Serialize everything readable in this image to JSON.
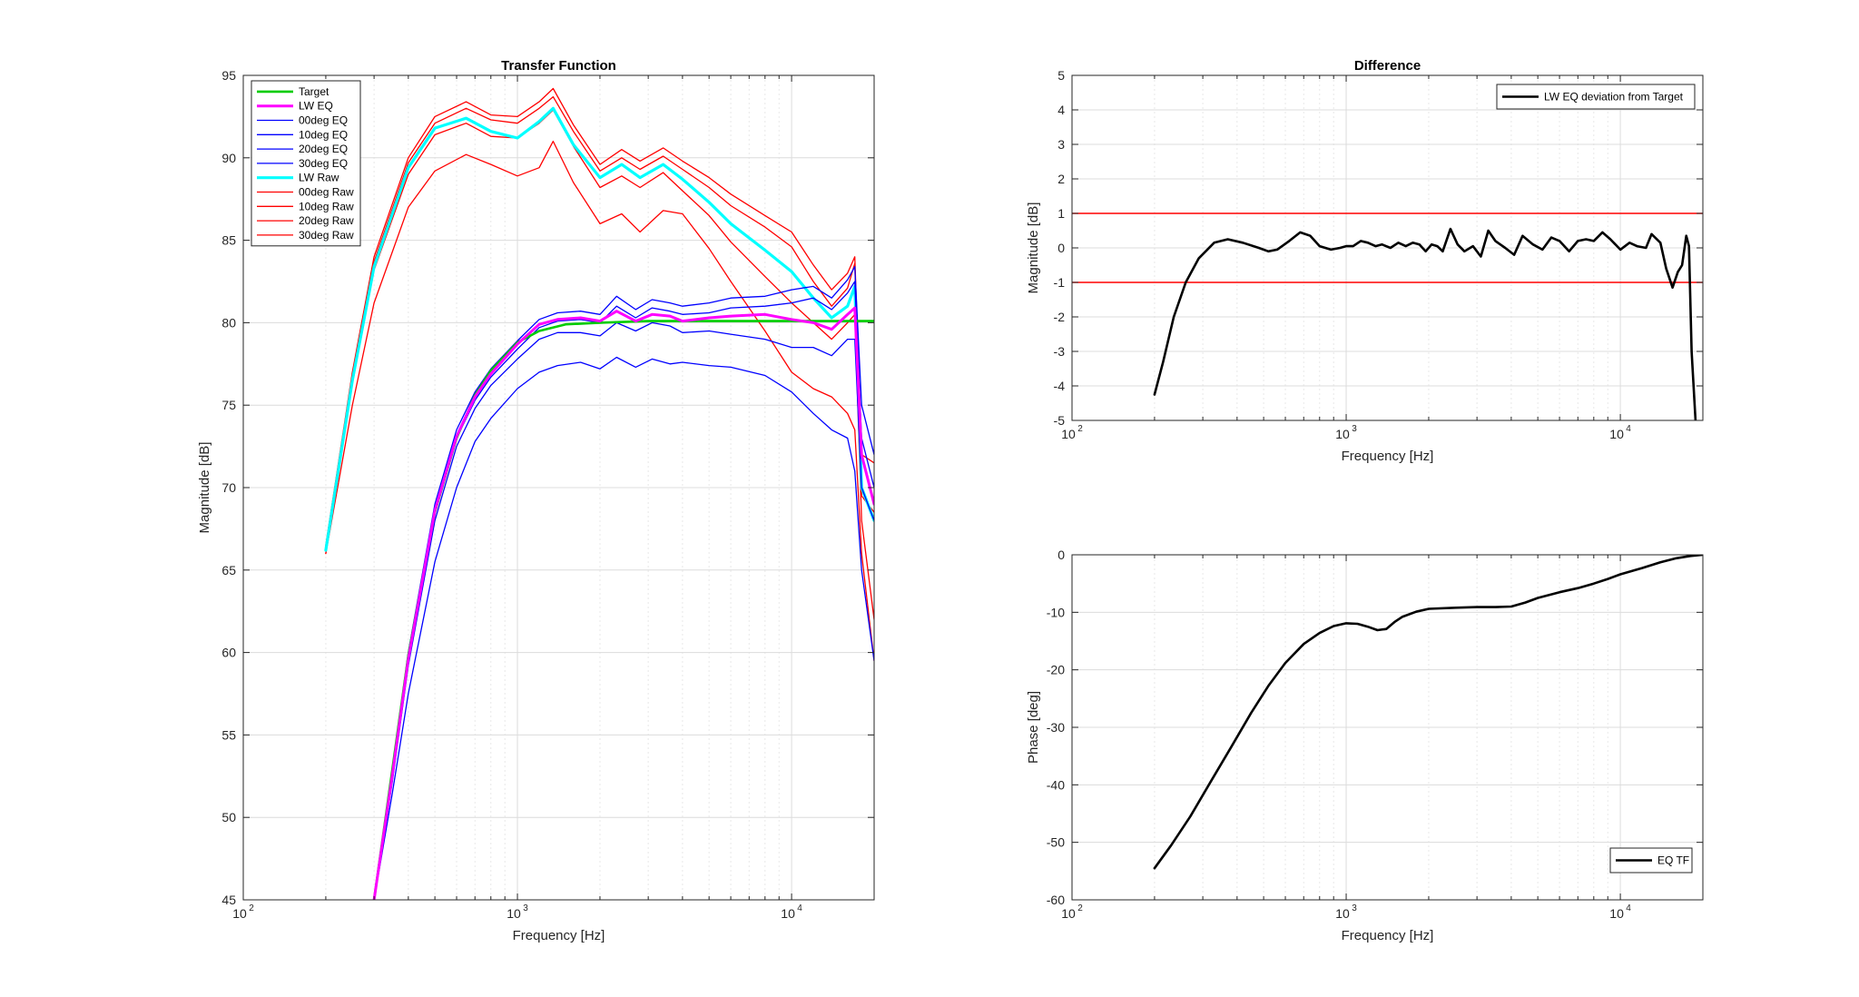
{
  "figure": {
    "background": "#ffffff"
  },
  "chart_data": [
    {
      "id": "tf",
      "type": "line",
      "title": "Transfer Function",
      "xlabel": "Frequency [Hz]",
      "ylabel": "Magnitude [dB]",
      "xscale": "log",
      "xlim": [
        100,
        20000
      ],
      "ylim": [
        45,
        95
      ],
      "grid": true,
      "xticks": [
        100,
        1000,
        10000
      ],
      "xtick_labels": [
        "10",
        "10",
        "10"
      ],
      "xtick_exponents": [
        "2",
        "3",
        "4"
      ],
      "yticks": [
        45,
        50,
        55,
        60,
        65,
        70,
        75,
        80,
        85,
        90,
        95
      ],
      "ytick_labels": [
        "45",
        "50",
        "55",
        "60",
        "65",
        "70",
        "75",
        "80",
        "85",
        "90",
        "95"
      ],
      "legend": {
        "placement": "top-left",
        "entries": [
          "Target",
          "LW EQ",
          "00deg EQ",
          "10deg EQ",
          "20deg EQ",
          "30deg EQ",
          "LW Raw",
          "00deg Raw",
          "10deg Raw",
          "20deg Raw",
          "30deg Raw"
        ]
      },
      "series": [
        {
          "name": "00deg Raw",
          "color": "#ff0000",
          "width": 1.3,
          "x": [
            200,
            250,
            300,
            400,
            500,
            650,
            800,
            1000,
            1200,
            1350,
            1600,
            2000,
            2400,
            2800,
            3400,
            4000,
            5000,
            6000,
            8000,
            10000,
            12000,
            14000,
            16000,
            17000,
            18000,
            20000
          ],
          "y": [
            66.5,
            77,
            84,
            90,
            92.5,
            93.4,
            92.6,
            92.5,
            93.4,
            94.2,
            92,
            89.6,
            90.5,
            89.8,
            90.6,
            89.8,
            88.8,
            87.8,
            86.5,
            85.5,
            83.5,
            82,
            83,
            84,
            72,
            71.5
          ]
        },
        {
          "name": "10deg Raw",
          "color": "#ff0000",
          "width": 1.3,
          "x": [
            200,
            250,
            300,
            400,
            500,
            650,
            800,
            1000,
            1200,
            1350,
            1600,
            2000,
            2400,
            2800,
            3400,
            4000,
            5000,
            6000,
            8000,
            10000,
            12000,
            14000,
            16000,
            17000,
            18000,
            20000
          ],
          "y": [
            66.2,
            76.7,
            83.7,
            89.7,
            92.1,
            93.0,
            92.3,
            92.1,
            93.0,
            93.7,
            91.6,
            89.2,
            90.0,
            89.3,
            90.1,
            89.3,
            88.2,
            87.1,
            85.8,
            84.6,
            82.5,
            81.0,
            82.1,
            83.6,
            69.5,
            68.5
          ]
        },
        {
          "name": "20deg Raw",
          "color": "#ff0000",
          "width": 1.3,
          "x": [
            200,
            250,
            300,
            400,
            500,
            650,
            800,
            1000,
            1200,
            1350,
            1600,
            2000,
            2400,
            2800,
            3400,
            4000,
            5000,
            6000,
            8000,
            10000,
            12000,
            14000,
            16000,
            17000,
            18000,
            20000
          ],
          "y": [
            66.0,
            76.3,
            83.2,
            89.0,
            91.4,
            92.1,
            91.3,
            91.2,
            92.1,
            92.9,
            90.7,
            88.2,
            88.9,
            88.2,
            89.1,
            88.0,
            86.5,
            84.9,
            82.8,
            81.2,
            80.0,
            79.0,
            80.0,
            80.5,
            68.0,
            62.0
          ]
        },
        {
          "name": "30deg Raw",
          "color": "#ff0000",
          "width": 1.3,
          "x": [
            200,
            250,
            300,
            400,
            500,
            650,
            800,
            1000,
            1200,
            1350,
            1600,
            2000,
            2400,
            2800,
            3400,
            4000,
            5000,
            6000,
            8000,
            10000,
            12000,
            14000,
            16000,
            17000,
            18000,
            20000
          ],
          "y": [
            66.0,
            75.0,
            81.2,
            87.0,
            89.2,
            90.2,
            89.6,
            88.9,
            89.4,
            91.0,
            88.5,
            86.0,
            86.6,
            85.5,
            86.8,
            86.6,
            84.5,
            82.5,
            79.5,
            77.0,
            76.0,
            75.5,
            74.5,
            73.5,
            66.0,
            59.5
          ]
        },
        {
          "name": "LW Raw",
          "color": "#00ffff",
          "width": 3.2,
          "x": [
            200,
            250,
            300,
            400,
            500,
            650,
            800,
            1000,
            1200,
            1350,
            1600,
            2000,
            2400,
            2800,
            3400,
            4000,
            5000,
            6000,
            8000,
            10000,
            12000,
            14000,
            16000,
            17000,
            18000,
            20000
          ],
          "y": [
            66.2,
            76.5,
            83.4,
            89.4,
            91.8,
            92.4,
            91.6,
            91.2,
            92.2,
            93.0,
            90.8,
            88.8,
            89.6,
            88.8,
            89.6,
            88.7,
            87.3,
            86.0,
            84.4,
            83.1,
            81.5,
            80.3,
            81.0,
            82.2,
            70.0,
            68.0
          ]
        },
        {
          "name": "00deg EQ",
          "color": "#0000ff",
          "width": 1.3,
          "x": [
            300,
            350,
            400,
            500,
            600,
            700,
            800,
            1000,
            1200,
            1400,
            1700,
            2000,
            2300,
            2700,
            3100,
            3600,
            4000,
            5000,
            6000,
            8000,
            10000,
            12000,
            14000,
            16000,
            17000,
            18000,
            20000
          ],
          "y": [
            45,
            53,
            60,
            69,
            73.5,
            75.8,
            77.2,
            78.9,
            80.2,
            80.6,
            80.7,
            80.5,
            81.6,
            80.8,
            81.4,
            81.2,
            81.0,
            81.2,
            81.5,
            81.6,
            82.0,
            82.2,
            81.5,
            82.6,
            83.4,
            75.0,
            72.0
          ]
        },
        {
          "name": "10deg EQ",
          "color": "#0000ff",
          "width": 1.3,
          "x": [
            300,
            350,
            400,
            500,
            600,
            700,
            800,
            1000,
            1200,
            1400,
            1700,
            2000,
            2300,
            2700,
            3100,
            3600,
            4000,
            5000,
            6000,
            8000,
            10000,
            12000,
            14000,
            16000,
            17000,
            18000,
            20000
          ],
          "y": [
            45,
            52.5,
            59.5,
            68.5,
            73,
            75.3,
            76.7,
            78.4,
            79.7,
            80.1,
            80.2,
            80.0,
            81.0,
            80.3,
            80.9,
            80.7,
            80.5,
            80.6,
            80.9,
            81.0,
            81.2,
            81.5,
            80.8,
            81.8,
            82.5,
            73.0,
            70.0
          ]
        },
        {
          "name": "20deg EQ",
          "color": "#0000ff",
          "width": 1.3,
          "x": [
            300,
            350,
            400,
            500,
            600,
            700,
            800,
            1000,
            1200,
            1400,
            1700,
            2000,
            2300,
            2700,
            3100,
            3600,
            4000,
            5000,
            6000,
            8000,
            10000,
            12000,
            14000,
            16000,
            17000,
            18000,
            20000
          ],
          "y": [
            45,
            52.2,
            59.2,
            68.0,
            72.5,
            74.8,
            76.2,
            77.8,
            79.0,
            79.4,
            79.4,
            79.2,
            80.0,
            79.5,
            80.0,
            79.8,
            79.4,
            79.5,
            79.3,
            79.0,
            78.5,
            78.5,
            78.0,
            79.0,
            79.0,
            70.0,
            68.0
          ]
        },
        {
          "name": "30deg EQ",
          "color": "#0000ff",
          "width": 1.3,
          "x": [
            300,
            350,
            400,
            500,
            600,
            700,
            800,
            1000,
            1200,
            1400,
            1700,
            2000,
            2300,
            2700,
            3100,
            3600,
            4000,
            5000,
            6000,
            8000,
            10000,
            12000,
            14000,
            16000,
            17000,
            18000,
            20000
          ],
          "y": [
            45,
            51.5,
            57.5,
            65.5,
            70,
            72.8,
            74.2,
            76.0,
            77.0,
            77.4,
            77.6,
            77.2,
            77.9,
            77.3,
            77.8,
            77.5,
            77.6,
            77.4,
            77.3,
            76.8,
            75.8,
            74.5,
            73.5,
            73.0,
            71.0,
            65.0,
            59.5
          ]
        },
        {
          "name": "Target",
          "color": "#00cc00",
          "width": 2.6,
          "x": [
            300,
            400,
            500,
            600,
            700,
            800,
            1000,
            1200,
            1500,
            2000,
            3000,
            5000,
            10000,
            15000,
            20000
          ],
          "y": [
            45,
            59.8,
            68.5,
            73,
            75.6,
            77.1,
            78.8,
            79.5,
            79.9,
            80.0,
            80.1,
            80.1,
            80.1,
            80.1,
            80.1
          ]
        },
        {
          "name": "LW EQ",
          "color": "#ff00ff",
          "width": 3.0,
          "x": [
            300,
            350,
            400,
            500,
            600,
            700,
            800,
            1000,
            1200,
            1400,
            1700,
            2000,
            2300,
            2700,
            3100,
            3600,
            4000,
            5000,
            6000,
            8000,
            10000,
            12000,
            14000,
            16000,
            17000,
            18000,
            20000
          ],
          "y": [
            45,
            52.6,
            59.6,
            68.6,
            73.1,
            75.5,
            76.9,
            78.7,
            79.9,
            80.2,
            80.3,
            80.1,
            80.7,
            80.1,
            80.5,
            80.4,
            80.1,
            80.3,
            80.4,
            80.5,
            80.2,
            80.0,
            79.6,
            80.5,
            80.9,
            72.0,
            69.0
          ]
        }
      ]
    },
    {
      "id": "diff",
      "type": "line",
      "title": "Difference",
      "xlabel": "Frequency [Hz]",
      "ylabel": "Magnitude [dB]",
      "xscale": "log",
      "xlim": [
        100,
        20000
      ],
      "ylim": [
        -5,
        5
      ],
      "grid": true,
      "xticks": [
        100,
        1000,
        10000
      ],
      "xtick_labels": [
        "10",
        "10",
        "10"
      ],
      "xtick_exponents": [
        "2",
        "3",
        "4"
      ],
      "yticks": [
        -5,
        -4,
        -3,
        -2,
        -1,
        0,
        1,
        2,
        3,
        4,
        5
      ],
      "ytick_labels": [
        "-5",
        "-4",
        "-3",
        "-2",
        "-1",
        "0",
        "1",
        "2",
        "3",
        "4",
        "5"
      ],
      "hlines": [
        {
          "y": 1,
          "color": "#ff0000"
        },
        {
          "y": -1,
          "color": "#ff0000"
        }
      ],
      "legend": {
        "placement": "top-right",
        "entries": [
          "LW EQ deviation from Target"
        ]
      },
      "series": [
        {
          "name": "LW EQ deviation from Target",
          "color": "#000000",
          "width": 2.6,
          "x": [
            200,
            215,
            235,
            260,
            290,
            330,
            370,
            420,
            480,
            520,
            560,
            620,
            680,
            740,
            800,
            880,
            950,
            1000,
            1060,
            1130,
            1200,
            1280,
            1350,
            1450,
            1550,
            1650,
            1750,
            1850,
            1950,
            2050,
            2150,
            2250,
            2400,
            2550,
            2700,
            2900,
            3100,
            3300,
            3500,
            3800,
            4100,
            4400,
            4800,
            5200,
            5600,
            6000,
            6500,
            7000,
            7500,
            8000,
            8600,
            9200,
            10000,
            10800,
            11500,
            12400,
            13000,
            14000,
            14700,
            15500,
            16200,
            16800,
            17400,
            17800,
            18200,
            18800
          ],
          "y": [
            -4.25,
            -3.3,
            -2.0,
            -1.0,
            -0.3,
            0.15,
            0.25,
            0.15,
            0.0,
            -0.1,
            -0.05,
            0.2,
            0.45,
            0.35,
            0.05,
            -0.05,
            0.0,
            0.05,
            0.05,
            0.2,
            0.15,
            0.05,
            0.1,
            0.0,
            0.15,
            0.05,
            0.15,
            0.1,
            -0.1,
            0.1,
            0.05,
            -0.1,
            0.55,
            0.1,
            -0.1,
            0.05,
            -0.25,
            0.5,
            0.2,
            0.0,
            -0.2,
            0.35,
            0.1,
            -0.05,
            0.3,
            0.2,
            -0.1,
            0.2,
            0.25,
            0.2,
            0.45,
            0.25,
            -0.05,
            0.15,
            0.05,
            0.0,
            0.4,
            0.15,
            -0.6,
            -1.15,
            -0.7,
            -0.5,
            0.35,
            0.05,
            -3.0,
            -5.0
          ]
        }
      ]
    },
    {
      "id": "phase",
      "type": "line",
      "title": "",
      "xlabel": "Frequency [Hz]",
      "ylabel": "Phase [deg]",
      "xscale": "log",
      "xlim": [
        100,
        20000
      ],
      "ylim": [
        -60,
        0
      ],
      "grid": true,
      "xticks": [
        100,
        1000,
        10000
      ],
      "xtick_labels": [
        "10",
        "10",
        "10"
      ],
      "xtick_exponents": [
        "2",
        "3",
        "4"
      ],
      "yticks": [
        -60,
        -50,
        -40,
        -30,
        -20,
        -10,
        0
      ],
      "ytick_labels": [
        "-60",
        "-50",
        "-40",
        "-30",
        "-20",
        "-10",
        "0"
      ],
      "legend": {
        "placement": "bottom-right",
        "entries": [
          "EQ TF"
        ]
      },
      "series": [
        {
          "name": "EQ TF",
          "color": "#000000",
          "width": 2.6,
          "x": [
            200,
            230,
            270,
            320,
            380,
            450,
            520,
            600,
            700,
            800,
            900,
            1000,
            1100,
            1200,
            1300,
            1400,
            1500,
            1600,
            1800,
            2000,
            2500,
            3000,
            3500,
            4000,
            4500,
            5000,
            6000,
            7000,
            8000,
            9000,
            10000,
            12000,
            14000,
            16000,
            18000,
            20000
          ],
          "y": [
            -54.5,
            -50.5,
            -45.5,
            -39.5,
            -33.5,
            -27.5,
            -22.8,
            -18.8,
            -15.5,
            -13.6,
            -12.4,
            -11.9,
            -12.0,
            -12.5,
            -13.1,
            -12.9,
            -11.7,
            -10.8,
            -9.9,
            -9.4,
            -9.2,
            -9.1,
            -9.1,
            -9.0,
            -8.3,
            -7.5,
            -6.5,
            -5.8,
            -5.0,
            -4.2,
            -3.4,
            -2.3,
            -1.3,
            -0.6,
            -0.2,
            0.0
          ]
        }
      ]
    }
  ]
}
